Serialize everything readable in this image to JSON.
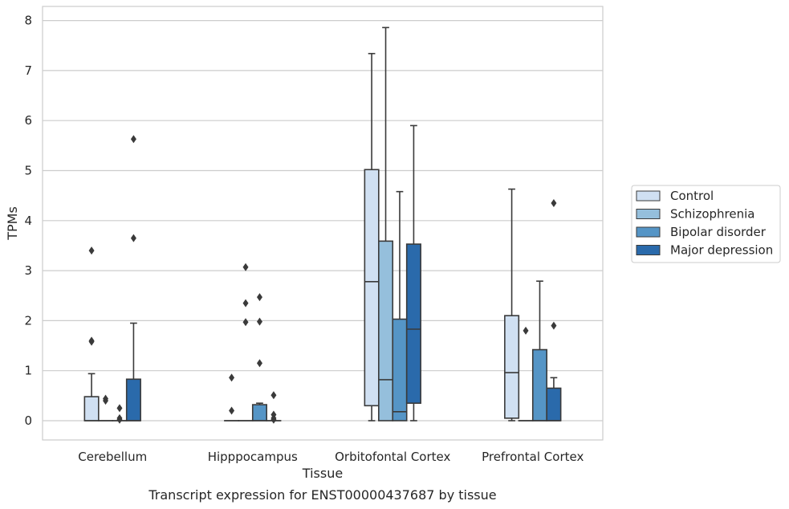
{
  "chart_data": {
    "type": "box",
    "title": "",
    "xlabel": "Tissue",
    "ylabel": "TPMs",
    "caption": "Transcript expression for ENST00000437687 by tissue",
    "ylim": [
      -0.38,
      8.25
    ],
    "yticks": [
      "0",
      "1",
      "2",
      "3",
      "4",
      "5",
      "6",
      "7",
      "8"
    ],
    "grid": "horizontal",
    "legend_position": "right",
    "categories": [
      "Cerebellum",
      "Hipppocampus",
      "Orbitofontal Cortex",
      "Prefrontal Cortex"
    ],
    "series": [
      {
        "name": "Control",
        "color": "#d0e0f2",
        "boxes": [
          {
            "q1": 0,
            "median": 0,
            "q3": 0.48,
            "whislo": 0,
            "whishi": 0.94,
            "fliers": [
              3.4,
              1.6,
              1.58
            ]
          },
          {
            "q1": 0,
            "median": 0,
            "q3": 0,
            "whislo": 0,
            "whishi": 0,
            "fliers": [
              0.86,
              0.2
            ]
          },
          {
            "q1": 0.3,
            "median": 2.78,
            "q3": 5.02,
            "whislo": 0,
            "whishi": 7.34,
            "fliers": []
          },
          {
            "q1": 0.05,
            "median": 0.96,
            "q3": 2.1,
            "whislo": 0,
            "whishi": 4.63,
            "fliers": []
          }
        ]
      },
      {
        "name": "Schizophrenia",
        "color": "#95bfdc",
        "boxes": [
          {
            "q1": 0,
            "median": 0,
            "q3": 0,
            "whislo": 0,
            "whishi": 0,
            "fliers": [
              0.44,
              0.4
            ]
          },
          {
            "q1": 0,
            "median": 0,
            "q3": 0,
            "whislo": 0,
            "whishi": 0,
            "fliers": [
              3.07,
              2.35,
              1.97
            ]
          },
          {
            "q1": 0,
            "median": 0.82,
            "q3": 3.59,
            "whislo": 0,
            "whishi": 7.86,
            "fliers": []
          },
          {
            "q1": 0,
            "median": 0,
            "q3": 0,
            "whislo": 0,
            "whishi": 0,
            "fliers": [
              1.8
            ]
          }
        ]
      },
      {
        "name": "Bipolar disorder",
        "color": "#5595c6",
        "boxes": [
          {
            "q1": 0,
            "median": 0,
            "q3": 0,
            "whislo": 0,
            "whishi": 0,
            "fliers": [
              0.25,
              0.05,
              0.02
            ]
          },
          {
            "q1": 0,
            "median": 0,
            "q3": 0.32,
            "whislo": 0,
            "whishi": 0.35,
            "fliers": [
              2.47,
              1.98,
              1.15
            ]
          },
          {
            "q1": 0,
            "median": 0.18,
            "q3": 2.03,
            "whislo": 0,
            "whishi": 4.58,
            "fliers": []
          },
          {
            "q1": 0,
            "median": 0,
            "q3": 1.42,
            "whislo": 0,
            "whishi": 2.79,
            "fliers": []
          }
        ]
      },
      {
        "name": "Major depression",
        "color": "#2a6aab",
        "boxes": [
          {
            "q1": 0,
            "median": 0,
            "q3": 0.83,
            "whislo": 0,
            "whishi": 1.95,
            "fliers": [
              5.63,
              3.65
            ]
          },
          {
            "q1": 0,
            "median": 0,
            "q3": 0,
            "whislo": 0,
            "whishi": 0,
            "fliers": [
              0.51,
              0.12,
              0.05,
              0.02
            ]
          },
          {
            "q1": 0.35,
            "median": 1.83,
            "q3": 3.53,
            "whislo": 0,
            "whishi": 5.9,
            "fliers": []
          },
          {
            "q1": 0,
            "median": 0,
            "q3": 0.65,
            "whislo": 0,
            "whishi": 0.86,
            "fliers": [
              4.35,
              1.9
            ]
          }
        ]
      }
    ]
  }
}
